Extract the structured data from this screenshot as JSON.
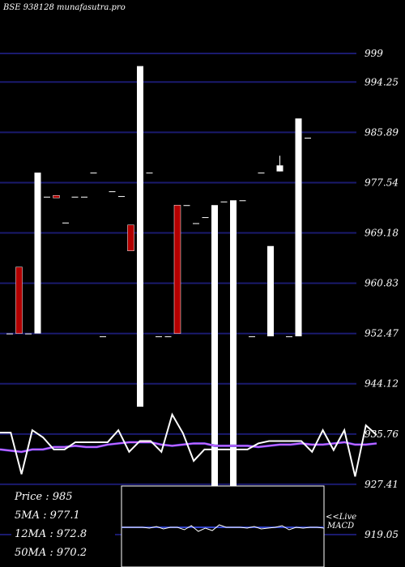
{
  "header": {
    "title": "BSE 938128 munafasutra.pro"
  },
  "info": {
    "price": "Price   :  985",
    "ma5": "5MA : 977.1",
    "ma12": "12MA : 972.8",
    "ma50": "50MA : 970.2"
  },
  "macd": {
    "label_line1": "<<Live",
    "label_line2": "MACD"
  },
  "colors": {
    "background": "#000000",
    "gridline": "#1a1a6e",
    "bullish": "#ffffff",
    "bearish": "#b30000",
    "ma_line": "#cc66ff",
    "ma_blue": "#2233cc"
  },
  "chart_data": {
    "type": "candlestick",
    "y_ticks": [
      "999",
      "994.25",
      "985.89",
      "977.54",
      "969.18",
      "960.83",
      "952.47",
      "944.12",
      "935.76",
      "927.41",
      "919.05"
    ],
    "ylim": [
      919.05,
      999
    ],
    "candles": [
      {
        "color": "white",
        "open": 952.47,
        "close": 952.47,
        "high": 952.47,
        "low": 952.47
      },
      {
        "color": "red",
        "open": 963.5,
        "close": 952.47,
        "high": 963.5,
        "low": 952.47
      },
      {
        "color": "white",
        "open": 952.47,
        "close": 952.47,
        "high": 952.47,
        "low": 952.47
      },
      {
        "color": "white",
        "open": 952.47,
        "close": 979.2,
        "high": 979.2,
        "low": 952.47
      },
      {
        "color": "white",
        "open": 975.2,
        "close": 975.2,
        "high": 975.2,
        "low": 975.2
      },
      {
        "color": "red",
        "open": 975.4,
        "close": 975.0,
        "high": 975.4,
        "low": 975.0
      },
      {
        "color": "white",
        "open": 970.9,
        "close": 970.9,
        "high": 970.9,
        "low": 970.9
      },
      {
        "color": "white",
        "open": 975.2,
        "close": 975.2,
        "high": 975.2,
        "low": 975.2
      },
      {
        "color": "white",
        "open": 975.2,
        "close": 975.2,
        "high": 975.2,
        "low": 975.2
      },
      {
        "color": "white",
        "open": 979.2,
        "close": 979.2,
        "high": 979.2,
        "low": 979.2
      },
      {
        "color": "white",
        "open": 952.0,
        "close": 952.0,
        "high": 952.0,
        "low": 952.0
      },
      {
        "color": "white",
        "open": 976.1,
        "close": 976.1,
        "high": 976.1,
        "low": 976.1
      },
      {
        "color": "white",
        "open": 975.3,
        "close": 975.3,
        "high": 975.3,
        "low": 975.3
      },
      {
        "color": "red",
        "open": 970.5,
        "close": 966.2,
        "high": 970.5,
        "low": 966.2
      },
      {
        "color": "white",
        "open": 940.3,
        "close": 996.9,
        "high": 996.9,
        "low": 940.3
      },
      {
        "color": "white",
        "open": 979.2,
        "close": 979.2,
        "high": 979.2,
        "low": 979.2
      },
      {
        "color": "white",
        "open": 952.0,
        "close": 952.0,
        "high": 952.0,
        "low": 952.0
      },
      {
        "color": "white",
        "open": 952.0,
        "close": 952.0,
        "high": 952.0,
        "low": 952.0
      },
      {
        "color": "red",
        "open": 973.8,
        "close": 952.47,
        "high": 973.8,
        "low": 952.47
      },
      {
        "color": "white",
        "open": 973.8,
        "close": 973.8,
        "high": 973.8,
        "low": 973.8
      },
      {
        "color": "white",
        "open": 970.8,
        "close": 970.8,
        "high": 970.8,
        "low": 970.8
      },
      {
        "color": "white",
        "open": 971.8,
        "close": 971.8,
        "high": 971.8,
        "low": 971.8
      },
      {
        "color": "white",
        "open": 924.0,
        "close": 973.8,
        "high": 973.8,
        "low": 924.0
      },
      {
        "color": "white",
        "open": 974.4,
        "close": 974.4,
        "high": 974.4,
        "low": 974.4
      },
      {
        "color": "white",
        "open": 924.0,
        "close": 974.6,
        "high": 974.6,
        "low": 924.0
      },
      {
        "color": "white",
        "open": 974.6,
        "close": 974.6,
        "high": 974.6,
        "low": 974.6
      },
      {
        "color": "white",
        "open": 952.0,
        "close": 952.0,
        "high": 952.0,
        "low": 952.0
      },
      {
        "color": "white",
        "open": 979.2,
        "close": 979.2,
        "high": 979.2,
        "low": 979.2
      },
      {
        "color": "white",
        "open": 952.0,
        "close": 967.0,
        "high": 967.0,
        "low": 952.0
      },
      {
        "color": "white",
        "open": 979.4,
        "close": 980.4,
        "high": 982.0,
        "low": 979.4
      },
      {
        "color": "white",
        "open": 952.0,
        "close": 952.0,
        "high": 952.0,
        "low": 952.0
      },
      {
        "color": "white",
        "open": 952.0,
        "close": 988.2,
        "high": 988.2,
        "low": 952.0
      },
      {
        "color": "white",
        "open": 985.0,
        "close": 985.0,
        "high": 985.0,
        "low": 985.0
      }
    ],
    "volume_line": [
      936.0,
      936.0,
      929.1,
      936.4,
      935.2,
      933.2,
      933.2,
      934.4,
      934.4,
      934.4,
      934.4,
      936.4,
      932.8,
      934.6,
      934.6,
      932.8,
      939.0,
      935.9,
      931.3,
      933.2,
      933.2,
      933.2,
      933.2,
      933.2,
      934.2,
      934.6,
      934.6,
      934.6,
      934.6,
      932.8,
      936.4,
      933.1,
      936.4,
      928.7,
      937.2,
      935.6
    ],
    "ma_line": [
      933.2,
      933.0,
      932.8,
      933.2,
      933.2,
      933.6,
      933.6,
      933.8,
      933.6,
      933.6,
      934.0,
      934.2,
      934.4,
      934.4,
      934.4,
      934.0,
      933.8,
      934.0,
      934.2,
      934.2,
      933.8,
      933.8,
      933.8,
      933.8,
      933.6,
      933.8,
      934.0,
      934.0,
      934.2,
      934.0,
      934.0,
      934.2,
      934.4,
      934.0,
      934.0,
      934.2
    ]
  }
}
